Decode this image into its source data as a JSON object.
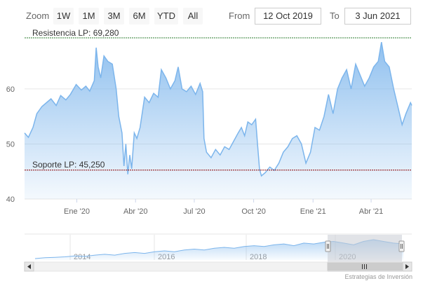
{
  "toolbar": {
    "zoom_label": "Zoom",
    "zoom_buttons": [
      "1W",
      "1M",
      "3M",
      "6M",
      "YTD",
      "All"
    ],
    "from_label": "From",
    "from_value": "12 Oct 2019",
    "to_label": "To",
    "to_value": "3 Jun 2021"
  },
  "colors": {
    "series_line": "#7cb5ec",
    "resistance_line": "#2e7d32",
    "support_line": "#8b0000",
    "navigator_mask": "#c8ccd3"
  },
  "chart_data": {
    "type": "area",
    "x_range": [
      "2019-10-12",
      "2021-06-03"
    ],
    "ylim": [
      40,
      69.28
    ],
    "y_ticks": [
      {
        "label": "40",
        "value": 40
      },
      {
        "label": "50",
        "value": 50
      },
      {
        "label": "60",
        "value": 60
      }
    ],
    "x_ticks": [
      {
        "label": "Ene '20",
        "date": "2020-01-01"
      },
      {
        "label": "Abr '20",
        "date": "2020-04-01"
      },
      {
        "label": "Jul '20",
        "date": "2020-07-01"
      },
      {
        "label": "Oct '20",
        "date": "2020-10-01"
      },
      {
        "label": "Ene '21",
        "date": "2021-01-01"
      },
      {
        "label": "Abr '21",
        "date": "2021-04-01"
      }
    ],
    "reference_lines": [
      {
        "name": "resistance",
        "label": "Resistencia LP: 69,280",
        "value": 69.28
      },
      {
        "name": "support",
        "label": "Soporte LP: 45,250",
        "value": 45.25
      }
    ],
    "points": [
      [
        "2019-10-12",
        52.0
      ],
      [
        "2019-10-18",
        51.2
      ],
      [
        "2019-10-25",
        53.0
      ],
      [
        "2019-10-31",
        55.5
      ],
      [
        "2019-11-08",
        56.8
      ],
      [
        "2019-11-15",
        57.5
      ],
      [
        "2019-11-22",
        58.2
      ],
      [
        "2019-11-30",
        57.0
      ],
      [
        "2019-12-07",
        58.8
      ],
      [
        "2019-12-15",
        58.0
      ],
      [
        "2019-12-22",
        59.0
      ],
      [
        "2019-12-31",
        60.8
      ],
      [
        "2020-01-08",
        59.8
      ],
      [
        "2020-01-15",
        60.5
      ],
      [
        "2020-01-21",
        59.6
      ],
      [
        "2020-01-28",
        61.5
      ],
      [
        "2020-01-31",
        67.5
      ],
      [
        "2020-02-03",
        64.0
      ],
      [
        "2020-02-07",
        62.0
      ],
      [
        "2020-02-12",
        66.0
      ],
      [
        "2020-02-18",
        65.0
      ],
      [
        "2020-02-25",
        64.5
      ],
      [
        "2020-03-02",
        60.0
      ],
      [
        "2020-03-06",
        55.0
      ],
      [
        "2020-03-11",
        52.0
      ],
      [
        "2020-03-14",
        46.0
      ],
      [
        "2020-03-17",
        50.0
      ],
      [
        "2020-03-20",
        44.5
      ],
      [
        "2020-03-23",
        48.0
      ],
      [
        "2020-03-26",
        45.5
      ],
      [
        "2020-03-30",
        52.0
      ],
      [
        "2020-04-03",
        51.0
      ],
      [
        "2020-04-08",
        53.0
      ],
      [
        "2020-04-15",
        58.5
      ],
      [
        "2020-04-22",
        57.5
      ],
      [
        "2020-04-29",
        59.2
      ],
      [
        "2020-05-06",
        58.5
      ],
      [
        "2020-05-11",
        63.5
      ],
      [
        "2020-05-18",
        62.0
      ],
      [
        "2020-05-25",
        60.0
      ],
      [
        "2020-06-01",
        61.5
      ],
      [
        "2020-06-06",
        64.0
      ],
      [
        "2020-06-12",
        60.0
      ],
      [
        "2020-06-19",
        59.5
      ],
      [
        "2020-06-26",
        60.5
      ],
      [
        "2020-07-03",
        59.0
      ],
      [
        "2020-07-10",
        61.0
      ],
      [
        "2020-07-14",
        59.5
      ],
      [
        "2020-07-16",
        51.0
      ],
      [
        "2020-07-20",
        48.5
      ],
      [
        "2020-07-27",
        47.5
      ],
      [
        "2020-08-03",
        49.0
      ],
      [
        "2020-08-10",
        48.0
      ],
      [
        "2020-08-17",
        49.5
      ],
      [
        "2020-08-24",
        49.0
      ],
      [
        "2020-08-31",
        50.5
      ],
      [
        "2020-09-07",
        52.0
      ],
      [
        "2020-09-12",
        53.0
      ],
      [
        "2020-09-17",
        51.5
      ],
      [
        "2020-09-22",
        54.0
      ],
      [
        "2020-09-28",
        53.5
      ],
      [
        "2020-10-04",
        54.5
      ],
      [
        "2020-10-07",
        50.0
      ],
      [
        "2020-10-10",
        45.5
      ],
      [
        "2020-10-13",
        44.2
      ],
      [
        "2020-10-19",
        44.8
      ],
      [
        "2020-10-26",
        45.8
      ],
      [
        "2020-11-02",
        45.2
      ],
      [
        "2020-11-09",
        46.5
      ],
      [
        "2020-11-16",
        48.5
      ],
      [
        "2020-11-23",
        49.5
      ],
      [
        "2020-11-30",
        51.0
      ],
      [
        "2020-12-07",
        51.5
      ],
      [
        "2020-12-14",
        50.0
      ],
      [
        "2020-12-21",
        46.5
      ],
      [
        "2020-12-28",
        48.5
      ],
      [
        "2021-01-04",
        53.0
      ],
      [
        "2021-01-11",
        52.5
      ],
      [
        "2021-01-18",
        55.0
      ],
      [
        "2021-01-25",
        59.0
      ],
      [
        "2021-02-01",
        55.5
      ],
      [
        "2021-02-08",
        60.0
      ],
      [
        "2021-02-15",
        62.0
      ],
      [
        "2021-02-22",
        63.5
      ],
      [
        "2021-03-01",
        60.0
      ],
      [
        "2021-03-08",
        64.5
      ],
      [
        "2021-03-15",
        62.5
      ],
      [
        "2021-03-22",
        60.5
      ],
      [
        "2021-03-29",
        62.0
      ],
      [
        "2021-04-05",
        64.0
      ],
      [
        "2021-04-12",
        65.0
      ],
      [
        "2021-04-17",
        68.5
      ],
      [
        "2021-04-22",
        65.0
      ],
      [
        "2021-04-29",
        64.0
      ],
      [
        "2021-05-06",
        60.0
      ],
      [
        "2021-05-13",
        56.5
      ],
      [
        "2021-05-19",
        53.5
      ],
      [
        "2021-05-25",
        55.5
      ],
      [
        "2021-06-01",
        57.5
      ],
      [
        "2021-06-03",
        57.0
      ]
    ]
  },
  "navigator": {
    "year_labels": [
      "2014",
      "2016",
      "2018",
      "2020"
    ],
    "overview_values": [
      40,
      41,
      41.5,
      42,
      43,
      42.5,
      44,
      45,
      44,
      46,
      47,
      46,
      48,
      49,
      48,
      50,
      51,
      50,
      52,
      53,
      52,
      54,
      55,
      54,
      56,
      57,
      55,
      58,
      57,
      59,
      60,
      58,
      56,
      60,
      62,
      60,
      58,
      57
    ]
  },
  "credit": "Estrategias de Inversión"
}
